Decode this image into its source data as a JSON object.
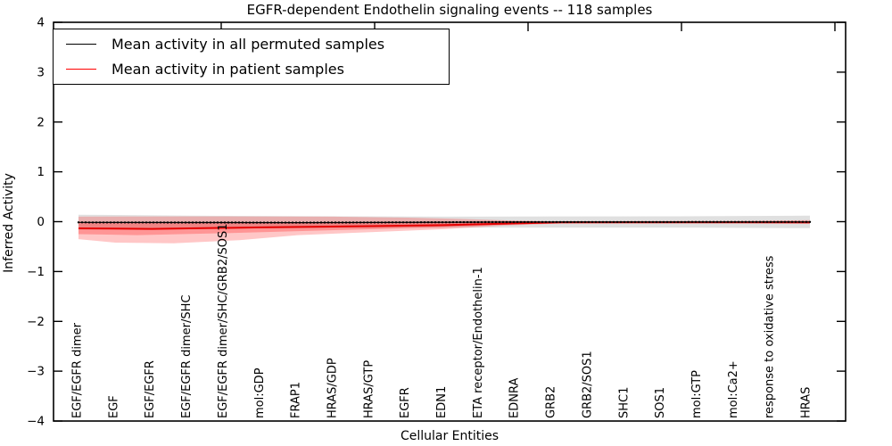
{
  "title": "EGFR-dependent Endothelin signaling events -- 118 samples",
  "legend": {
    "items": [
      {
        "label": "Mean activity in all permuted samples",
        "color": "#000000"
      },
      {
        "label": "Mean activity in patient samples",
        "color": "#ff0000"
      }
    ]
  },
  "chart_data": {
    "type": "line",
    "title": "EGFR-dependent Endothelin signaling events -- 118 samples",
    "xlabel": "Cellular Entities",
    "ylabel": "Inferred Activity",
    "ylim": [
      -4,
      4
    ],
    "yticks": [
      4,
      3,
      2,
      1,
      0,
      -1,
      -2,
      -3,
      -4
    ],
    "ytick_labels": [
      "4",
      "3",
      "2",
      "1",
      "0",
      "−1",
      "−2",
      "−3",
      "−4"
    ],
    "grid": false,
    "legend_position": "upper left",
    "entities": [
      "EGF/EGFR dimer",
      "EGF",
      "EGF/EGFR",
      "EGF/EGFR dimer/SHC",
      "EGF/EGFR dimer/SHC/GRB2/SOS1",
      "mol:GDP",
      "FRAP1",
      "HRAS/GDP",
      "HRAS/GTP",
      "EGFR",
      "EDN1",
      "ETA receptor/Endothelin-1",
      "EDNRA",
      "GRB2",
      "GRB2/SOS1",
      "SHC1",
      "SOS1",
      "mol:GTP",
      "mol:Ca2+",
      "response to oxidative stress",
      "HRAS"
    ],
    "series": [
      {
        "name": "Mean activity in all permuted samples",
        "color": "#000000",
        "style": "line-with-dot-markers",
        "points": [
          [
            0,
            -0.015
          ],
          [
            0.3,
            -0.02
          ],
          [
            0.6,
            -0.008
          ],
          [
            1,
            -0.005
          ]
        ]
      },
      {
        "name": "Mean activity in patient samples",
        "color": "#e60000",
        "style": "line",
        "points": [
          [
            0,
            -0.135
          ],
          [
            0.1,
            -0.145
          ],
          [
            0.25,
            -0.115
          ],
          [
            0.4,
            -0.09
          ],
          [
            0.5,
            -0.07
          ],
          [
            0.58,
            -0.04
          ],
          [
            0.66,
            -0.015
          ],
          [
            0.8,
            -0.012
          ],
          [
            1,
            -0.012
          ]
        ]
      }
    ],
    "bands": [
      {
        "name": "permuted-samples-range",
        "color": "#bbbbbb",
        "opacity": 0.45,
        "top": [
          [
            0,
            0.14
          ],
          [
            0.15,
            0.12
          ],
          [
            0.5,
            0.1
          ],
          [
            0.85,
            0.11
          ],
          [
            1,
            0.12
          ]
        ],
        "bottom": [
          [
            0,
            -0.16
          ],
          [
            0.15,
            -0.14
          ],
          [
            0.5,
            -0.12
          ],
          [
            0.85,
            -0.12
          ],
          [
            1,
            -0.13
          ]
        ]
      },
      {
        "name": "patient-samples-range-outer",
        "color": "#ff3030",
        "opacity": 0.27,
        "top": [
          [
            0,
            0.1
          ],
          [
            0.15,
            0.105
          ],
          [
            0.35,
            0.1
          ],
          [
            0.45,
            0.08
          ],
          [
            0.52,
            0.055
          ],
          [
            0.6,
            0.02
          ],
          [
            0.66,
            0.006
          ],
          [
            0.75,
            0.01
          ],
          [
            0.9,
            0.015
          ],
          [
            1,
            0.03
          ]
        ],
        "bottom": [
          [
            0,
            -0.35
          ],
          [
            0.05,
            -0.42
          ],
          [
            0.13,
            -0.435
          ],
          [
            0.22,
            -0.37
          ],
          [
            0.3,
            -0.27
          ],
          [
            0.4,
            -0.21
          ],
          [
            0.5,
            -0.15
          ],
          [
            0.58,
            -0.08
          ],
          [
            0.66,
            -0.035
          ],
          [
            0.8,
            -0.03
          ],
          [
            0.9,
            -0.03
          ],
          [
            1,
            -0.045
          ]
        ]
      },
      {
        "name": "patient-samples-range-inner",
        "color": "#ff2020",
        "opacity": 0.3,
        "top": [
          [
            0,
            -0.02
          ],
          [
            0.3,
            -0.01
          ],
          [
            0.5,
            -0.005
          ],
          [
            0.62,
            0.0
          ],
          [
            1,
            0.005
          ]
        ],
        "bottom": [
          [
            0,
            -0.25
          ],
          [
            0.08,
            -0.27
          ],
          [
            0.2,
            -0.23
          ],
          [
            0.35,
            -0.17
          ],
          [
            0.5,
            -0.11
          ],
          [
            0.62,
            -0.04
          ],
          [
            0.75,
            -0.025
          ],
          [
            1,
            -0.03
          ]
        ]
      }
    ]
  }
}
